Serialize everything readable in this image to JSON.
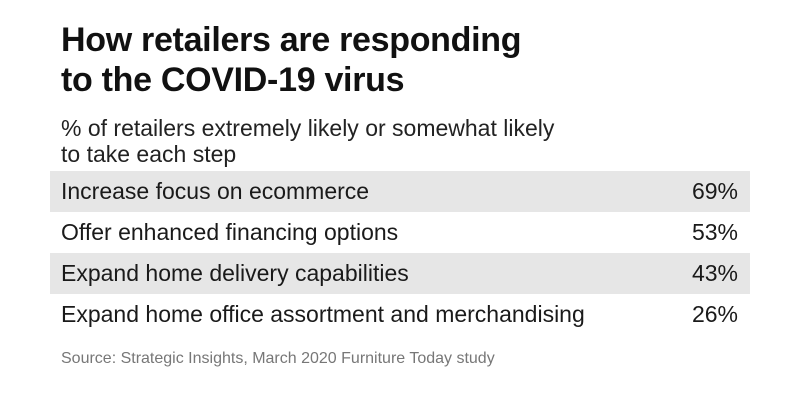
{
  "title_lines": [
    "How retailers are responding",
    "to the COVID-19 virus"
  ],
  "subtitle_lines": [
    "% of retailers extremely likely or somewhat likely",
    "to take each step"
  ],
  "source": "Source: Strategic Insights, March 2020 Furniture Today study",
  "colors": {
    "row_shade": "#e6e6e6",
    "text": "#111111",
    "source_text": "#777777"
  },
  "chart_data": {
    "type": "table",
    "title": "How retailers are responding to the COVID-19 virus",
    "subtitle": "% of retailers extremely likely or somewhat likely to take each step",
    "categories": [
      "Increase focus on ecommerce",
      "Offer enhanced financing options",
      "Expand home delivery capabilities",
      "Expand home office assortment and merchandising"
    ],
    "values": [
      69,
      53,
      43,
      26
    ],
    "value_labels": [
      "69%",
      "53%",
      "43%",
      "26%"
    ],
    "unit": "%"
  }
}
